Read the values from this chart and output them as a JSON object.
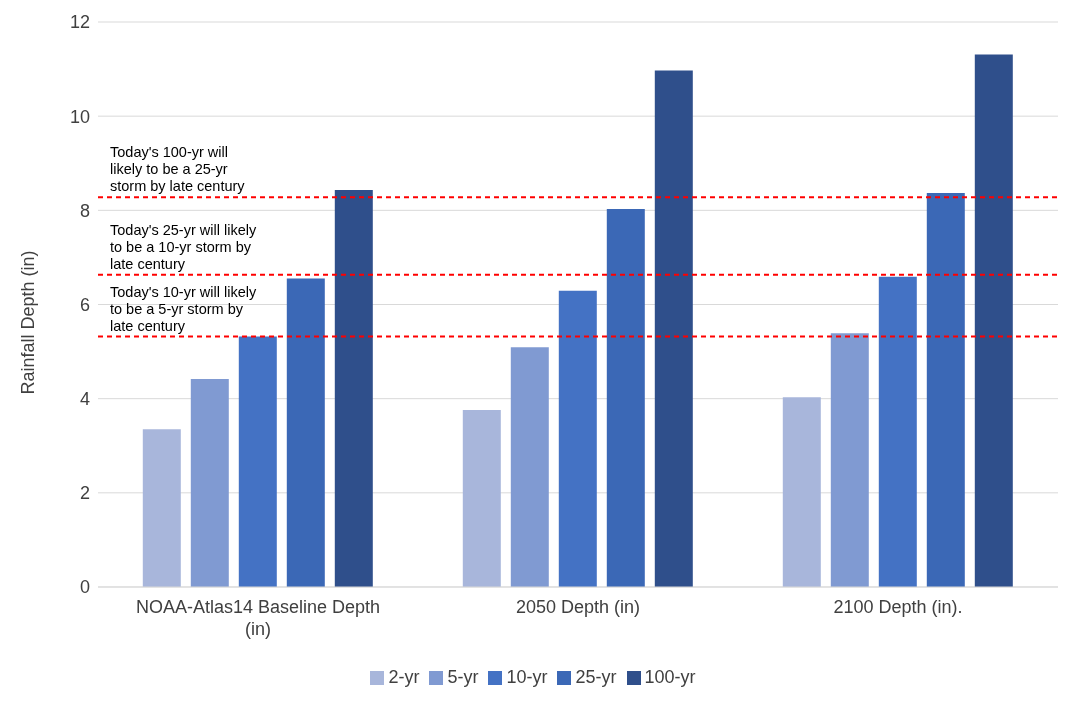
{
  "chart_data": {
    "type": "bar",
    "ylabel": "Rainfall Depth (in)",
    "categories": [
      "NOAA-Atlas14 Baseline Depth (in)",
      "2050 Depth (in)",
      "2100 Depth (in)."
    ],
    "series": [
      {
        "name": "2-yr",
        "color": "#a8b6db",
        "values": [
          3.35,
          3.76,
          4.03
        ]
      },
      {
        "name": "5-yr",
        "color": "#809ad2",
        "values": [
          4.42,
          5.09,
          5.39
        ]
      },
      {
        "name": "10-yr",
        "color": "#4472c4",
        "values": [
          5.32,
          6.29,
          6.59
        ]
      },
      {
        "name": "25-yr",
        "color": "#3b68b6",
        "values": [
          6.55,
          8.03,
          8.37
        ]
      },
      {
        "name": "100-yr",
        "color": "#2f4f8b",
        "values": [
          8.43,
          10.97,
          11.31
        ]
      }
    ],
    "ylim": [
      0,
      12
    ],
    "yticks": [
      0,
      2,
      4,
      6,
      8,
      10,
      12
    ],
    "grid": "y",
    "legend": "bottom",
    "ref_lines": [
      {
        "axis": "y",
        "value": 8.28,
        "label": "Today's 100-yr will likely to be a 25-yr storm by late century",
        "color": "#ff0000",
        "line_style": "dashed"
      },
      {
        "axis": "y",
        "value": 6.63,
        "label": "Today's 25-yr will likely to be a 10-yr storm by late century",
        "color": "#ff0000",
        "line_style": "dashed"
      },
      {
        "axis": "y",
        "value": 5.32,
        "label": "Today's 10-yr will likely to be a 5-yr storm by late century",
        "color": "#ff0000",
        "line_style": "dashed"
      }
    ]
  }
}
